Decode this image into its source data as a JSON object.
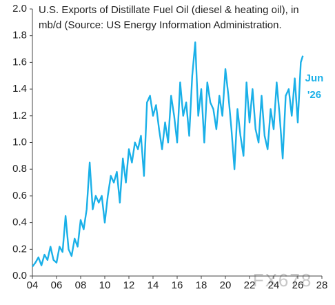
{
  "chart_data": {
    "type": "line",
    "title": "U.S. Exports of Distillate Fuel Oil (diesel & heating oil), in mb/d (Source: US Energy Information Administration.",
    "annotation": [
      "Jun",
      "'26"
    ],
    "watermark": "FX678",
    "xlim": [
      2004,
      2028
    ],
    "ylim": [
      0,
      2.0
    ],
    "xticks": [
      {
        "value": 2004,
        "label": "04"
      },
      {
        "value": 2006,
        "label": "06"
      },
      {
        "value": 2008,
        "label": "08"
      },
      {
        "value": 2010,
        "label": "10"
      },
      {
        "value": 2012,
        "label": "12"
      },
      {
        "value": 2014,
        "label": "14"
      },
      {
        "value": 2016,
        "label": "16"
      },
      {
        "value": 2018,
        "label": "18"
      },
      {
        "value": 2020,
        "label": "20"
      },
      {
        "value": 2022,
        "label": "22"
      },
      {
        "value": 2024,
        "label": "24"
      },
      {
        "value": 2026,
        "label": "26"
      },
      {
        "value": 2028,
        "label": "28"
      }
    ],
    "yticks": [
      {
        "value": 0,
        "label": "0.0"
      },
      0.2,
      0.4,
      0.6,
      0.8,
      {
        "value": 1,
        "label": "1.0"
      },
      1.2,
      1.4,
      1.6,
      1.8,
      {
        "value": 2,
        "label": "2.0"
      }
    ],
    "grid": false,
    "series": [
      {
        "color": "#1ab0e8",
        "x": [
          2004.0,
          2004.25,
          2004.5,
          2004.75,
          2005.0,
          2005.25,
          2005.5,
          2005.75,
          2006.0,
          2006.25,
          2006.5,
          2006.75,
          2007.0,
          2007.25,
          2007.5,
          2007.75,
          2008.0,
          2008.25,
          2008.5,
          2008.75,
          2009.0,
          2009.25,
          2009.5,
          2009.75,
          2010.0,
          2010.25,
          2010.5,
          2010.75,
          2011.0,
          2011.25,
          2011.5,
          2011.75,
          2012.0,
          2012.25,
          2012.5,
          2012.75,
          2013.0,
          2013.25,
          2013.5,
          2013.75,
          2014.0,
          2014.25,
          2014.5,
          2014.75,
          2015.0,
          2015.25,
          2015.5,
          2015.75,
          2016.0,
          2016.25,
          2016.5,
          2016.75,
          2017.0,
          2017.25,
          2017.5,
          2017.75,
          2018.0,
          2018.25,
          2018.5,
          2018.75,
          2019.0,
          2019.25,
          2019.5,
          2019.75,
          2020.0,
          2020.25,
          2020.5,
          2020.75,
          2021.0,
          2021.25,
          2021.5,
          2021.75,
          2022.0,
          2022.25,
          2022.5,
          2022.75,
          2023.0,
          2023.25,
          2023.5,
          2023.75,
          2024.0,
          2024.25,
          2024.5,
          2024.75,
          2025.0,
          2025.25,
          2025.5,
          2025.75,
          2026.0,
          2026.25,
          2026.42
        ],
        "values": [
          0.07,
          0.1,
          0.14,
          0.08,
          0.16,
          0.12,
          0.22,
          0.12,
          0.1,
          0.22,
          0.18,
          0.45,
          0.2,
          0.15,
          0.28,
          0.22,
          0.42,
          0.35,
          0.5,
          0.85,
          0.5,
          0.6,
          0.55,
          0.6,
          0.4,
          0.6,
          0.75,
          0.7,
          0.78,
          0.55,
          0.88,
          0.7,
          0.95,
          0.85,
          1.0,
          0.95,
          1.05,
          0.75,
          1.3,
          1.35,
          1.2,
          1.28,
          1.1,
          0.95,
          1.15,
          1.0,
          1.35,
          1.2,
          1.0,
          1.45,
          1.2,
          1.3,
          1.05,
          1.5,
          1.75,
          1.2,
          1.4,
          1.0,
          1.45,
          1.3,
          1.25,
          1.1,
          1.35,
          1.2,
          1.55,
          1.35,
          1.1,
          0.8,
          1.25,
          1.05,
          0.9,
          1.45,
          1.15,
          1.4,
          1.1,
          1.0,
          1.35,
          1.05,
          0.95,
          1.25,
          1.1,
          1.45,
          1.2,
          0.88,
          1.35,
          1.4,
          1.2,
          1.48,
          1.15,
          1.6,
          1.65
        ]
      }
    ]
  }
}
